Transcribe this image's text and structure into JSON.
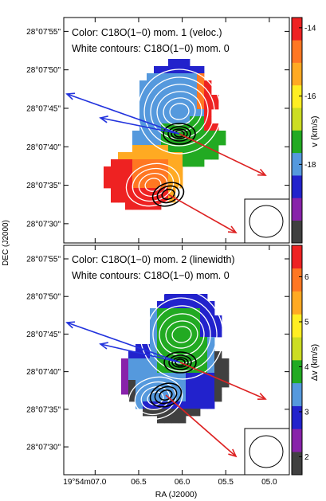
{
  "figure": {
    "shared_xlabel": "RA (J2000)",
    "shared_ylabel": "DEC (J2000)"
  },
  "chart_data": [
    {
      "type": "heatmap",
      "panel": "top",
      "title_line1": "Color: C18O(1−0) mom. 1 (veloc.)",
      "title_line2": "White contours: C18O(1−0) mom. 0",
      "colorbar_label": "v (km/s)",
      "colorbar_ticks": [
        -14,
        -16,
        -18
      ],
      "colorbar_range": [
        -20.3,
        -13.7
      ],
      "colorbar_colors": [
        "#404040",
        "#8822aa",
        "#2222cc",
        "#5599dd",
        "#22aa22",
        "#ccdd22",
        "#ffee22",
        "#ffaa22",
        "#ff7722",
        "#ee2222"
      ],
      "y_ticks": [
        "28°07'55\"",
        "28°07'50\"",
        "28°07'45\"",
        "28°07'40\"",
        "28°07'35\"",
        "28°07'30\""
      ],
      "y_tick_values": [
        55,
        50,
        45,
        40,
        35,
        30
      ],
      "x_tick_values": [
        7.0,
        6.5,
        6.0,
        5.5,
        5.0
      ],
      "annotations": [
        "blue outflow arrows (NW)",
        "red outflow arrows (SE)",
        "black contours: continuum peaks",
        "beam ellipse (lower right)"
      ]
    },
    {
      "type": "heatmap",
      "panel": "bottom",
      "title_line1": "Color: C18O(1−0) mom. 2 (linewidth)",
      "title_line2": "White contours: C18O(1−0) mom. 0",
      "colorbar_label": "Δv (km/s)",
      "colorbar_ticks": [
        2,
        3,
        4,
        5,
        6
      ],
      "colorbar_range": [
        1.6,
        6.7
      ],
      "colorbar_colors": [
        "#404040",
        "#8822aa",
        "#2222cc",
        "#5599dd",
        "#22aa22",
        "#ccdd22",
        "#ffee22",
        "#ffaa22",
        "#ff7722",
        "#ee2222"
      ],
      "y_ticks": [
        "28°07'55\"",
        "28°07'50\"",
        "28°07'45\"",
        "28°07'40\"",
        "28°07'35\"",
        "28°07'30\""
      ],
      "y_tick_values": [
        55,
        50,
        45,
        40,
        35,
        30
      ],
      "x_ticks": [
        "19°54m07.0",
        "06.5",
        "06.0",
        "05.5",
        "05.0"
      ],
      "x_tick_values": [
        7.0,
        6.5,
        6.0,
        5.5,
        5.0
      ],
      "annotations": [
        "blue outflow arrows (NW)",
        "red outflow arrows (SE)",
        "black contours: continuum peaks",
        "beam ellipse (lower right)"
      ]
    }
  ]
}
